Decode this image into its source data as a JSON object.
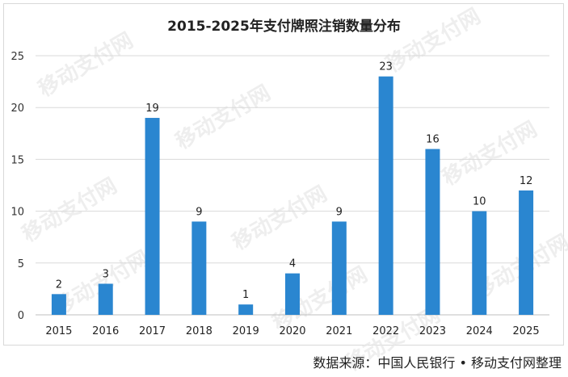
{
  "chart_data": {
    "type": "bar",
    "title": "2015-2025年支付牌照注销数量分布",
    "categories": [
      "2015",
      "2016",
      "2017",
      "2018",
      "2019",
      "2020",
      "2021",
      "2022",
      "2023",
      "2024",
      "2025"
    ],
    "values": [
      2,
      3,
      19,
      9,
      1,
      4,
      9,
      23,
      16,
      10,
      12
    ],
    "ylim": [
      0,
      25
    ],
    "yticks": [
      0,
      5,
      10,
      15,
      20,
      25
    ],
    "xlabel": "",
    "ylabel": "",
    "grid": true,
    "bar_color": "#2a86d0"
  },
  "source_text": "数据来源：中国人民银行 • 移动支付网整理",
  "watermark": "移动支付网"
}
